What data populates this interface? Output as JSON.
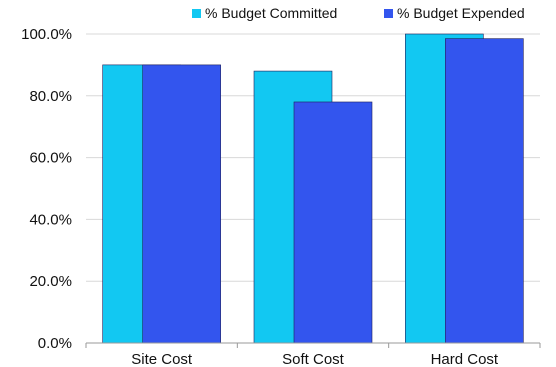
{
  "chart_data": {
    "type": "bar",
    "categories": [
      "Site Cost",
      "Soft Cost",
      "Hard Cost"
    ],
    "series": [
      {
        "name": "% Budget Committed",
        "values": [
          90.0,
          88.0,
          100.0
        ],
        "color": "#12c8f2"
      },
      {
        "name": "% Budget Expended",
        "values": [
          90.0,
          78.0,
          98.5
        ],
        "color": "#3355ee"
      }
    ],
    "ylim": [
      0,
      100
    ],
    "yticks": [
      0,
      20,
      40,
      60,
      80,
      100
    ],
    "ytick_labels": [
      "0.0%",
      "20.0%",
      "40.0%",
      "60.0%",
      "80.0%",
      "100.0%"
    ],
    "grid": true,
    "legend_position": "top-right",
    "title": "",
    "xlabel": "",
    "ylabel": ""
  }
}
